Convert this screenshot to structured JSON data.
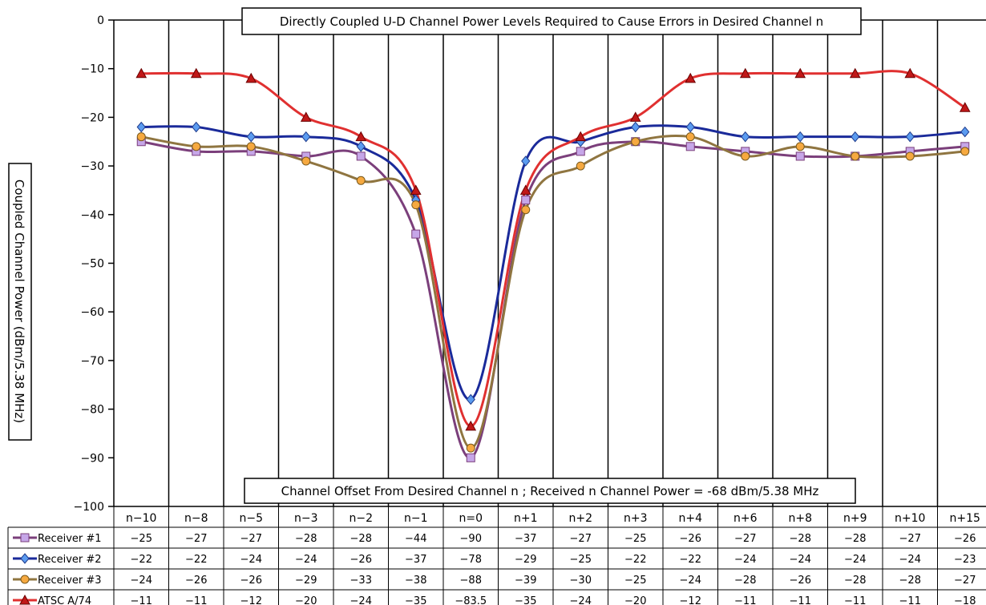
{
  "chart_data": {
    "type": "line",
    "title": "Directly Coupled U-D Channel Power Levels Required to Cause Errors in Desired Channel n",
    "xlabel": "Channel Offset From Desired Channel n ; Received n Channel Power = -68 dBm/5.38 MHz",
    "ylabel": "Coupled Channel Power (dBm/5.38 MHz)",
    "ylim": [
      -100,
      0
    ],
    "yticks": [
      "0",
      "-10",
      "-20",
      "-30",
      "-40",
      "-50",
      "-60",
      "-70",
      "-80",
      "-90",
      "-100"
    ],
    "grid": "vertical",
    "legend": "data-table-below",
    "categories": [
      "n-10",
      "n-8",
      "n-5",
      "n-3",
      "n-2",
      "n-1",
      "n=0",
      "n+1",
      "n+2",
      "n+3",
      "n+4",
      "n+6",
      "n+8",
      "n+9",
      "n+10",
      "n+15"
    ],
    "series": [
      {
        "name": "Receiver #1",
        "color": "#7b3f7b",
        "marker": "square",
        "marker_color": "#c6a6e8",
        "values": [
          -25,
          -27,
          -27,
          -28,
          -28,
          -44,
          -90,
          -37,
          -27,
          -25,
          -26,
          -27,
          -28,
          -28,
          -27,
          -26
        ],
        "labels": [
          "-25",
          "-27",
          "-27",
          "-28",
          "-28",
          "-44",
          "-90",
          "-37",
          "-27",
          "-25",
          "-26",
          "-27",
          "-28",
          "-28",
          "-27",
          "-26"
        ]
      },
      {
        "name": "Receiver #2",
        "color": "#1a2a9a",
        "marker": "diamond",
        "marker_color": "#5b9bf0",
        "values": [
          -22,
          -22,
          -24,
          -24,
          -26,
          -37,
          -78,
          -29,
          -25,
          -22,
          -22,
          -24,
          -24,
          -24,
          -24,
          -23
        ],
        "labels": [
          "-22",
          "-22",
          "-24",
          "-24",
          "-26",
          "-37",
          "-78",
          "-29",
          "-25",
          "-22",
          "-22",
          "-24",
          "-24",
          "-24",
          "-24",
          "-23"
        ]
      },
      {
        "name": "Receiver #3",
        "color": "#8f7540",
        "marker": "circle",
        "marker_color": "#f6a940",
        "values": [
          -24,
          -26,
          -26,
          -29,
          -33,
          -38,
          -88,
          -39,
          -30,
          -25,
          -24,
          -28,
          -26,
          -28,
          -28,
          -27
        ],
        "labels": [
          "-24",
          "-26",
          "-26",
          "-29",
          "-33",
          "-38",
          "-88",
          "-39",
          "-30",
          "-25",
          "-24",
          "-28",
          "-26",
          "-28",
          "-28",
          "-27"
        ]
      },
      {
        "name": "ATSC A/74",
        "color": "#e03030",
        "marker": "triangle",
        "marker_color": "#c01818",
        "values": [
          -11,
          -11,
          -12,
          -20,
          -24,
          -35,
          -83.5,
          -35,
          -24,
          -20,
          -12,
          -11,
          -11,
          -11,
          -11,
          -18
        ],
        "labels": [
          "-11",
          "-11",
          "-12",
          "-20",
          "-24",
          "-35",
          "-83.5",
          "-35",
          "-24",
          "-20",
          "-12",
          "-11",
          "-11",
          "-11",
          "-11",
          "-18"
        ]
      }
    ]
  }
}
